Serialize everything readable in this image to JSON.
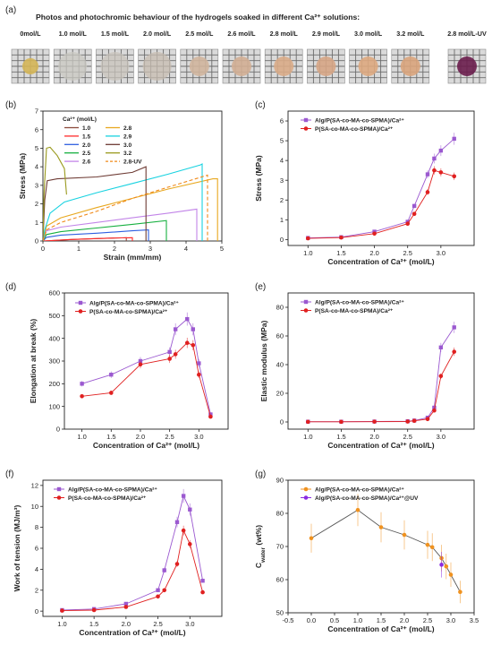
{
  "panel_a": {
    "label": "(a)",
    "title": "Photos and photochromic behaviour of the hydrogels soaked in different Ca²⁺ solutions:",
    "samples": [
      {
        "label": "0mol/L",
        "color": "#d4b556"
      },
      {
        "label": "1.0 mol/L",
        "color": "#c9c8c2"
      },
      {
        "label": "1.5 mol/L",
        "color": "#c8c3bb"
      },
      {
        "label": "2.0 mol/L",
        "color": "#c7bcb0"
      },
      {
        "label": "2.5 mol/L",
        "color": "#d0b59d"
      },
      {
        "label": "2.6 mol/L",
        "color": "#d2ae93"
      },
      {
        "label": "2.8 mol/L",
        "color": "#d9ab87"
      },
      {
        "label": "2.9 mol/L",
        "color": "#d6a585"
      },
      {
        "label": "3.0 mol/L",
        "color": "#dda87f"
      },
      {
        "label": "3.2 mol/L",
        "color": "#d9a47c"
      },
      {
        "label": "2.8 mol/L-UV",
        "color": "#6a1d4d"
      }
    ]
  },
  "colors": {
    "purple": "#9b59d0",
    "red": "#e02020",
    "orange": "#f0921f",
    "darkpurple": "#8a2be2"
  },
  "chart_data": [
    {
      "id": "b",
      "type": "line",
      "label": "(b)",
      "xlabel": "Strain (mm/mm)",
      "ylabel": "Stress (MPa)",
      "xlim": [
        0,
        5
      ],
      "ylim": [
        0,
        7
      ],
      "xticks": [
        0,
        1,
        2,
        3,
        4,
        5
      ],
      "yticks": [
        0,
        1,
        2,
        3,
        4,
        5,
        6,
        7
      ],
      "legend_title": "Ca²⁺ (mol/L)",
      "series": [
        {
          "name": "1.0",
          "color": "#8b4a3c",
          "dash": "",
          "points": [
            [
              0,
              0
            ],
            [
              0.8,
              0.08
            ],
            [
              1.5,
              0.13
            ],
            [
              2.2,
              0.17
            ],
            [
              2.33,
              0.18
            ],
            [
              2.33,
              0
            ]
          ]
        },
        {
          "name": "1.5",
          "color": "#ff2a2a",
          "dash": "",
          "points": [
            [
              0,
              0
            ],
            [
              0.8,
              0.08
            ],
            [
              1.5,
              0.13
            ],
            [
              2.2,
              0.17
            ],
            [
              2.5,
              0.18
            ],
            [
              2.5,
              0
            ]
          ]
        },
        {
          "name": "2.0",
          "color": "#2f5fe0",
          "dash": "",
          "points": [
            [
              0,
              0
            ],
            [
              0.1,
              0.2
            ],
            [
              0.5,
              0.32
            ],
            [
              1.5,
              0.42
            ],
            [
              2.5,
              0.55
            ],
            [
              2.95,
              0.6
            ],
            [
              2.95,
              0
            ]
          ]
        },
        {
          "name": "2.5",
          "color": "#17b040",
          "dash": "",
          "points": [
            [
              0,
              0
            ],
            [
              0.1,
              0.35
            ],
            [
              0.5,
              0.5
            ],
            [
              1.5,
              0.7
            ],
            [
              2.5,
              0.9
            ],
            [
              3.45,
              1.1
            ],
            [
              3.45,
              0
            ]
          ]
        },
        {
          "name": "2.6",
          "color": "#c285e8",
          "dash": "",
          "points": [
            [
              0,
              0
            ],
            [
              0.1,
              0.55
            ],
            [
              0.5,
              0.75
            ],
            [
              1.5,
              1.0
            ],
            [
              2.5,
              1.25
            ],
            [
              3.5,
              1.5
            ],
            [
              4.3,
              1.72
            ],
            [
              4.3,
              0
            ]
          ]
        },
        {
          "name": "2.8",
          "color": "#e8a820",
          "dash": "",
          "points": [
            [
              0,
              0
            ],
            [
              0.1,
              0.8
            ],
            [
              0.5,
              1.25
            ],
            [
              1.5,
              1.8
            ],
            [
              2.5,
              2.3
            ],
            [
              3.5,
              2.8
            ],
            [
              4.75,
              3.35
            ],
            [
              4.88,
              3.35
            ],
            [
              4.88,
              0
            ]
          ]
        },
        {
          "name": "2.9",
          "color": "#18d2e0",
          "dash": "",
          "points": [
            [
              0,
              0
            ],
            [
              0.05,
              0.6
            ],
            [
              0.2,
              1.5
            ],
            [
              0.6,
              2.1
            ],
            [
              1.5,
              2.6
            ],
            [
              2.5,
              3.1
            ],
            [
              3.5,
              3.6
            ],
            [
              4.4,
              4.1
            ],
            [
              4.45,
              4.15
            ],
            [
              4.45,
              0
            ]
          ]
        },
        {
          "name": "3.0",
          "color": "#6e3b34",
          "dash": "",
          "points": [
            [
              0,
              0
            ],
            [
              0.05,
              2.2
            ],
            [
              0.12,
              3.25
            ],
            [
              0.4,
              3.35
            ],
            [
              1.5,
              3.45
            ],
            [
              2.5,
              3.7
            ],
            [
              2.88,
              4.0
            ],
            [
              2.88,
              0
            ]
          ]
        },
        {
          "name": "3.2",
          "color": "#9a9a1e",
          "dash": "",
          "points": [
            [
              0,
              0
            ],
            [
              0.03,
              2.5
            ],
            [
              0.1,
              5.0
            ],
            [
              0.2,
              5.05
            ],
            [
              0.4,
              4.6
            ],
            [
              0.6,
              3.9
            ],
            [
              0.66,
              2.5
            ]
          ]
        },
        {
          "name": "2.8-UV",
          "color": "#f08a1a",
          "dash": "4,2.5",
          "points": [
            [
              0,
              0
            ],
            [
              0.1,
              0.6
            ],
            [
              0.5,
              1.0
            ],
            [
              1.5,
              1.6
            ],
            [
              2.5,
              2.3
            ],
            [
              3.5,
              2.9
            ],
            [
              4.6,
              3.55
            ],
            [
              4.6,
              0
            ]
          ]
        }
      ]
    },
    {
      "id": "c",
      "type": "line",
      "label": "(c)",
      "xlabel": "Concentration of Ca²⁺ (mol/L)",
      "ylabel": "Stress (MPa)",
      "xlim": [
        0.7,
        3.5
      ],
      "ylim": [
        -0.3,
        6.5
      ],
      "xticks": [
        1.0,
        1.5,
        2.0,
        2.5,
        3.0
      ],
      "yticks": [
        0,
        1,
        2,
        3,
        4,
        5,
        6
      ],
      "x": [
        1.0,
        1.5,
        2.0,
        2.5,
        2.6,
        2.8,
        2.9,
        3.0,
        3.2
      ],
      "series": [
        {
          "name": "Alg/P(SA-co-MA-co-SPMA)/Ca²⁺",
          "color": "#9b59d0",
          "marker": "square",
          "values": [
            0.08,
            0.12,
            0.4,
            0.9,
            1.7,
            3.3,
            4.1,
            4.5,
            5.1
          ]
        },
        {
          "name": "P(SA-co-MA-co-SPMA)/Ca²⁺",
          "color": "#e02020",
          "marker": "circle",
          "values": [
            0.06,
            0.1,
            0.3,
            0.8,
            1.3,
            2.4,
            3.5,
            3.4,
            3.2
          ]
        }
      ]
    },
    {
      "id": "d",
      "type": "line",
      "label": "(d)",
      "xlabel": "Concentration of Ca²⁺ (mol/L)",
      "ylabel": "Elongation at break (%)",
      "xlim": [
        0.7,
        3.5
      ],
      "ylim": [
        0,
        600
      ],
      "xticks": [
        1.0,
        1.5,
        2.0,
        2.5,
        3.0
      ],
      "yticks": [
        0,
        100,
        200,
        300,
        400,
        500,
        600
      ],
      "x": [
        1.0,
        1.5,
        2.0,
        2.5,
        2.6,
        2.8,
        2.9,
        3.0,
        3.2
      ],
      "series": [
        {
          "name": "Alg/P(SA-co-MA-co-SPMA)/Ca²⁺",
          "color": "#9b59d0",
          "marker": "square",
          "values": [
            200,
            240,
            300,
            340,
            440,
            485,
            440,
            290,
            65
          ]
        },
        {
          "name": "P(SA-co-MA-co-SPMA)/Ca²⁺",
          "color": "#e02020",
          "marker": "circle",
          "values": [
            145,
            160,
            285,
            310,
            330,
            380,
            370,
            240,
            55
          ]
        }
      ]
    },
    {
      "id": "e",
      "type": "line",
      "label": "(e)",
      "xlabel": "Concentration of Ca²⁺ (mol/L)",
      "ylabel": "Elastic modulus (MPa)",
      "xlim": [
        0.7,
        3.5
      ],
      "ylim": [
        -5,
        90
      ],
      "xticks": [
        1.0,
        1.5,
        2.0,
        2.5,
        3.0
      ],
      "yticks": [
        0,
        20,
        40,
        60,
        80
      ],
      "x": [
        1.0,
        1.5,
        2.0,
        2.5,
        2.6,
        2.8,
        2.9,
        3.0,
        3.2
      ],
      "series": [
        {
          "name": "Alg/P(SA-co-MA-co-SPMA)/Ca²⁺",
          "color": "#9b59d0",
          "marker": "square",
          "values": [
            0.2,
            0.2,
            0.3,
            0.5,
            1,
            3,
            10,
            52,
            66
          ]
        },
        {
          "name": "P(SA-co-MA-co-SPMA)/Ca²⁺",
          "color": "#e02020",
          "marker": "circle",
          "values": [
            0.1,
            0.1,
            0.2,
            0.3,
            0.8,
            2,
            8,
            32,
            49
          ]
        }
      ]
    },
    {
      "id": "f",
      "type": "line",
      "label": "(f)",
      "xlabel": "Concentration of Ca²⁺ (mol/L)",
      "ylabel": "Work of tension (MJ/m³)",
      "xlim": [
        0.7,
        3.5
      ],
      "ylim": [
        -0.5,
        12.5
      ],
      "xticks": [
        1.0,
        1.5,
        2.0,
        2.5,
        3.0
      ],
      "yticks": [
        0,
        2,
        4,
        6,
        8,
        10,
        12
      ],
      "x": [
        1.0,
        1.5,
        2.0,
        2.5,
        2.6,
        2.8,
        2.9,
        3.0,
        3.2
      ],
      "series": [
        {
          "name": "Alg/P(SA-co-MA-co-SPMA)/Ca²⁺",
          "color": "#9b59d0",
          "marker": "square",
          "values": [
            0.1,
            0.2,
            0.7,
            2.0,
            3.9,
            8.5,
            11.0,
            9.7,
            2.9
          ]
        },
        {
          "name": "P(SA-co-MA-co-SPMA)/Ca²⁺",
          "color": "#e02020",
          "marker": "circle",
          "values": [
            0.05,
            0.1,
            0.4,
            1.4,
            2.0,
            4.5,
            7.7,
            6.4,
            1.8
          ]
        }
      ]
    },
    {
      "id": "g",
      "type": "line",
      "label": "(g)",
      "xlabel": "Concentration of Ca²⁺ (mol/L)",
      "ylabel": "C_water (wt%)",
      "ylabel_main": "C",
      "ylabel_sub": "water",
      "ylabel_tail": " (wt%)",
      "xlim": [
        -0.5,
        3.5
      ],
      "ylim": [
        50,
        90
      ],
      "xticks": [
        -0.5,
        0.0,
        0.5,
        1.0,
        1.5,
        2.0,
        2.5,
        3.0,
        3.5
      ],
      "yticks": [
        50,
        60,
        70,
        80,
        90
      ],
      "x": [
        0.0,
        1.0,
        1.5,
        2.0,
        2.5,
        2.6,
        2.8,
        2.9,
        3.0,
        3.2
      ],
      "series": [
        {
          "name": "Alg/P(SA-co-MA-co-SPMA)/Ca²⁺",
          "color": "#f0921f",
          "marker": "circle",
          "values": [
            72.5,
            81,
            75.8,
            73.5,
            70.5,
            69.8,
            66.5,
            64,
            61.5,
            56.3
          ]
        },
        {
          "name": "Alg/P(SA-co-MA-co-SPMA)/Ca²⁺@UV",
          "color": "#8a2be2",
          "marker": "circle",
          "x": [
            2.8
          ],
          "values": [
            64.5
          ]
        }
      ]
    }
  ]
}
